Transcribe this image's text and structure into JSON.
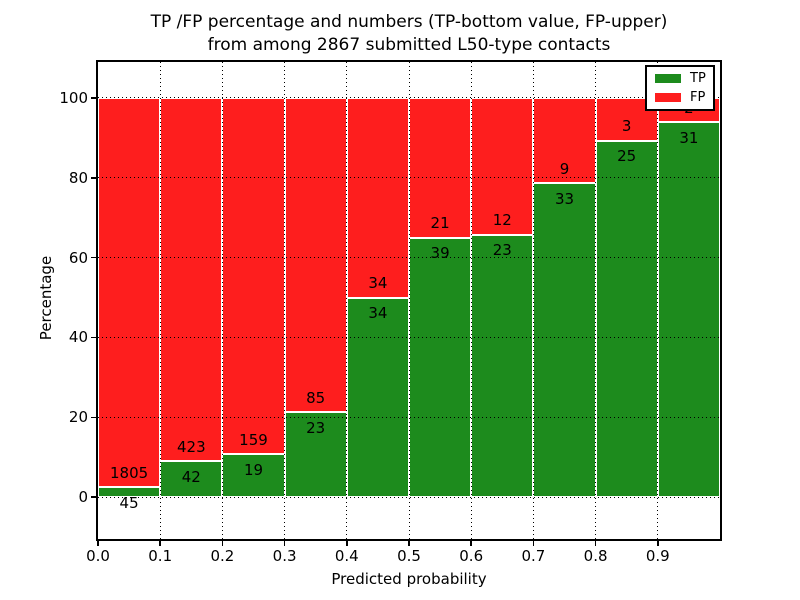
{
  "figure": {
    "title_line1": "TP /FP percentage and numbers (TP-bottom value, FP-upper)",
    "title_line2": "from among 2867 submitted L50-type contacts"
  },
  "axes": {
    "xlabel": "Predicted probability",
    "ylabel": "Percentage",
    "x_tick_labels": [
      "0.0",
      "0.1",
      "0.2",
      "0.3",
      "0.4",
      "0.5",
      "0.6",
      "0.7",
      "0.8",
      "0.9"
    ],
    "y_tick_labels": [
      "0",
      "20",
      "40",
      "60",
      "80",
      "100"
    ]
  },
  "legend": {
    "items": [
      {
        "label": "TP",
        "color": "#1d8b1d"
      },
      {
        "label": "FP",
        "color": "#fe1e1e"
      }
    ]
  },
  "chart_data": {
    "type": "bar",
    "stacked": true,
    "title": "TP /FP percentage and numbers (TP-bottom value, FP-upper) from among 2867 submitted L50-type contacts",
    "xlabel": "Predicted probability",
    "ylabel": "Percentage",
    "total_contacts": 2867,
    "bin_edges": [
      0.0,
      0.1,
      0.2,
      0.3,
      0.4,
      0.5,
      0.6,
      0.7,
      0.8,
      0.9,
      1.0
    ],
    "categories": [
      "0.0-0.1",
      "0.1-0.2",
      "0.2-0.3",
      "0.3-0.4",
      "0.4-0.5",
      "0.5-0.6",
      "0.6-0.7",
      "0.7-0.8",
      "0.8-0.9",
      "0.9-1.0"
    ],
    "series": [
      {
        "name": "TP",
        "color": "#1d8b1d",
        "counts": [
          45,
          42,
          19,
          23,
          34,
          39,
          23,
          33,
          25,
          31
        ],
        "percent_of_bin": [
          2.4,
          9.0,
          10.7,
          21.3,
          50.0,
          65.0,
          65.7,
          78.6,
          89.3,
          93.9
        ]
      },
      {
        "name": "FP",
        "color": "#fe1e1e",
        "counts": [
          1805,
          423,
          159,
          85,
          34,
          21,
          12,
          9,
          3,
          2
        ],
        "percent_of_bin": [
          97.6,
          91.0,
          89.3,
          78.7,
          50.0,
          35.0,
          34.3,
          21.4,
          10.7,
          6.1
        ]
      }
    ],
    "x_ticks": [
      0.0,
      0.1,
      0.2,
      0.3,
      0.4,
      0.5,
      0.6,
      0.7,
      0.8,
      0.9
    ],
    "y_ticks": [
      0,
      20,
      40,
      60,
      80,
      100
    ],
    "xlim": [
      0,
      1
    ],
    "ylim": [
      0,
      100
    ],
    "grid": "dotted",
    "legend_position": "upper right",
    "bar_total_height_percent": 100
  }
}
